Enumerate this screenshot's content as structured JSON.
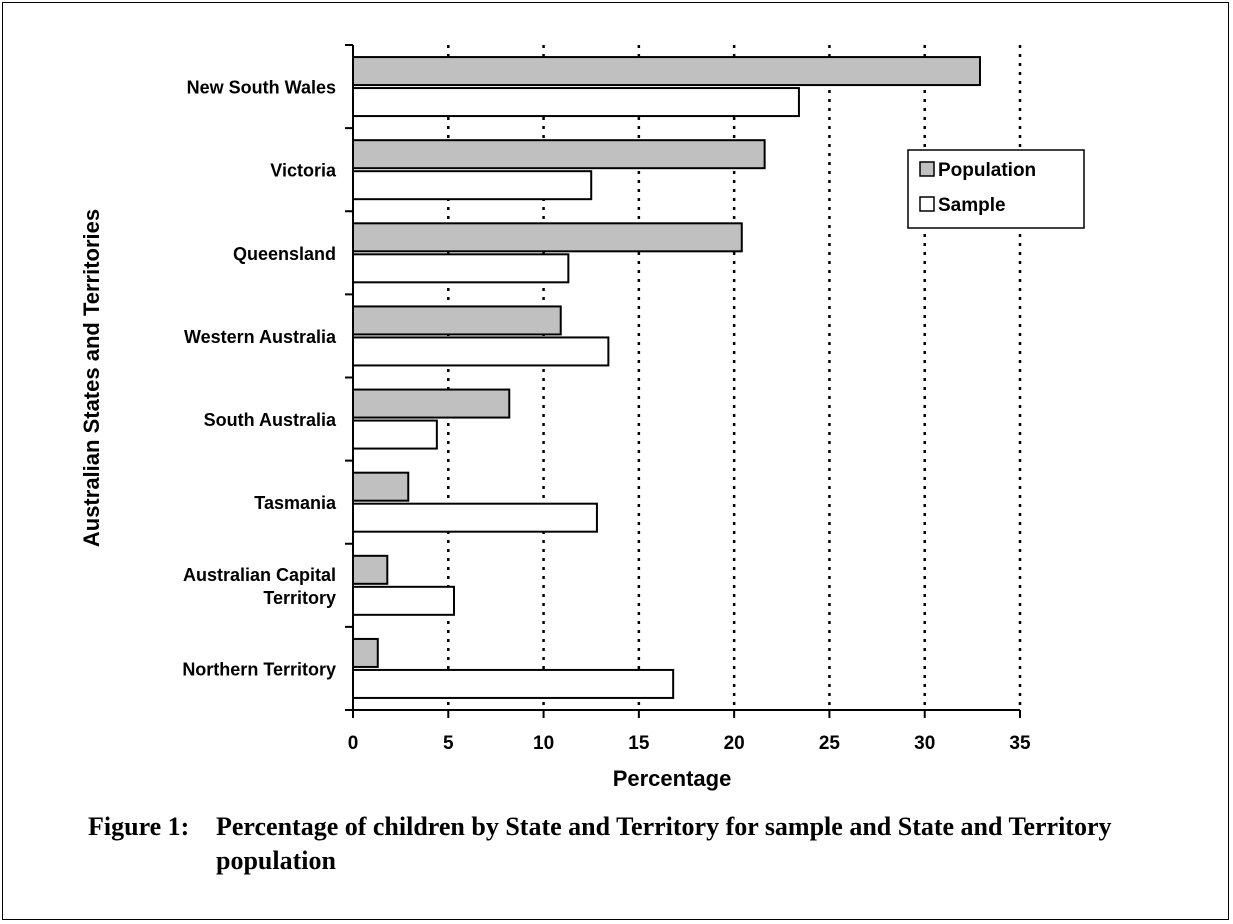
{
  "chart_data": {
    "type": "bar",
    "orientation": "horizontal",
    "categories": [
      [
        "New South Wales"
      ],
      [
        "Victoria"
      ],
      [
        "Queensland"
      ],
      [
        "Western Australia"
      ],
      [
        "South Australia"
      ],
      [
        "Tasmania"
      ],
      [
        "Australian Capital",
        "Territory"
      ],
      [
        "Northern Territory"
      ]
    ],
    "series": [
      {
        "name": "Population",
        "color": "#c0c0c0",
        "values": [
          32.9,
          21.6,
          20.4,
          10.9,
          8.2,
          2.9,
          1.8,
          1.3
        ]
      },
      {
        "name": "Sample",
        "color": "#ffffff",
        "values": [
          23.4,
          12.5,
          11.3,
          13.4,
          4.4,
          12.8,
          5.3,
          16.8
        ]
      }
    ],
    "xlabel": "Percentage",
    "ylabel": "Australian States and Territories",
    "xlim": [
      0,
      35
    ],
    "xticks": [
      "0",
      "5",
      "10",
      "15",
      "20",
      "25",
      "30",
      "35"
    ],
    "grid": "vertical dotted",
    "legend": "top-right"
  },
  "caption": {
    "label": "Figure 1:",
    "text": "Percentage of children by State and Territory for sample and State and Territory population"
  }
}
